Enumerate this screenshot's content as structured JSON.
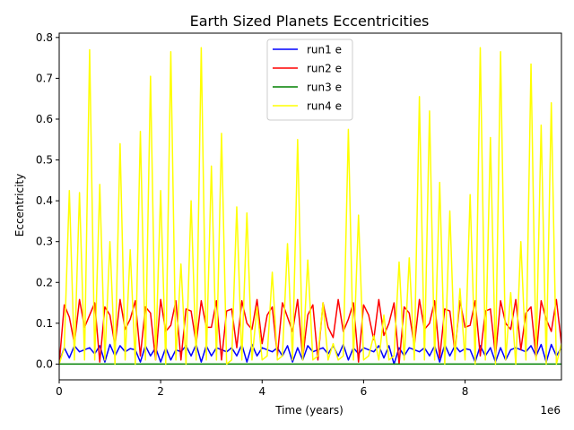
{
  "chart_data": {
    "type": "line",
    "title": "Earth Sized Planets Eccentricities",
    "xlabel": "Time (years)",
    "ylabel": "Eccentricity",
    "x_scale_label": "1e6",
    "xlim": [
      0,
      9900000
    ],
    "ylim": [
      -0.0386,
      0.8106
    ],
    "x_ticks": [
      0,
      2000000,
      4000000,
      6000000,
      8000000
    ],
    "x_tick_labels": [
      "0",
      "2",
      "4",
      "6",
      "8"
    ],
    "y_ticks": [
      0.0,
      0.1,
      0.2,
      0.3,
      0.4,
      0.5,
      0.6,
      0.7,
      0.8
    ],
    "y_tick_labels": [
      "0.0",
      "0.1",
      "0.2",
      "0.3",
      "0.4",
      "0.5",
      "0.6",
      "0.7",
      "0.8"
    ],
    "grid": false,
    "legend": "top-center",
    "x": [
      0,
      100000,
      200000,
      300000,
      400000,
      500000,
      600000,
      700000,
      800000,
      900000,
      1000000,
      1100000,
      1200000,
      1300000,
      1400000,
      1500000,
      1600000,
      1700000,
      1800000,
      1900000,
      2000000,
      2100000,
      2200000,
      2300000,
      2400000,
      2500000,
      2600000,
      2700000,
      2800000,
      2900000,
      3000000,
      3100000,
      3200000,
      3300000,
      3400000,
      3500000,
      3600000,
      3700000,
      3800000,
      3900000,
      4000000,
      4100000,
      4200000,
      4300000,
      4400000,
      4500000,
      4600000,
      4700000,
      4800000,
      4900000,
      5000000,
      5100000,
      5200000,
      5300000,
      5400000,
      5500000,
      5600000,
      5700000,
      5800000,
      5900000,
      6000000,
      6100000,
      6200000,
      6300000,
      6400000,
      6500000,
      6600000,
      6700000,
      6800000,
      6900000,
      7000000,
      7100000,
      7200000,
      7300000,
      7400000,
      7500000,
      7600000,
      7700000,
      7800000,
      7900000,
      8000000,
      8100000,
      8200000,
      8300000,
      8400000,
      8500000,
      8600000,
      8700000,
      8800000,
      8900000,
      9000000,
      9100000,
      9200000,
      9300000,
      9400000,
      9500000,
      9600000,
      9700000,
      9800000,
      9900000
    ],
    "series": [
      {
        "name": "run1 e",
        "color": "#0000ff",
        "values": [
          0.005,
          0.04,
          0.015,
          0.045,
          0.03,
          0.035,
          0.04,
          0.025,
          0.045,
          0.005,
          0.048,
          0.02,
          0.045,
          0.03,
          0.038,
          0.035,
          0.005,
          0.045,
          0.02,
          0.04,
          0.005,
          0.04,
          0.01,
          0.035,
          0.03,
          0.045,
          0.02,
          0.048,
          0.005,
          0.045,
          0.02,
          0.04,
          0.035,
          0.03,
          0.04,
          0.02,
          0.048,
          0.005,
          0.048,
          0.02,
          0.04,
          0.035,
          0.03,
          0.04,
          0.02,
          0.045,
          0.005,
          0.04,
          0.01,
          0.045,
          0.03,
          0.035,
          0.04,
          0.025,
          0.045,
          0.02,
          0.048,
          0.01,
          0.04,
          0.025,
          0.04,
          0.035,
          0.03,
          0.045,
          0.015,
          0.045,
          0.0,
          0.04,
          0.02,
          0.04,
          0.035,
          0.03,
          0.04,
          0.02,
          0.045,
          0.005,
          0.048,
          0.02,
          0.045,
          0.03,
          0.038,
          0.035,
          0.005,
          0.045,
          0.02,
          0.04,
          0.005,
          0.04,
          0.01,
          0.035,
          0.04,
          0.035,
          0.03,
          0.045,
          0.02,
          0.048,
          0.005,
          0.048,
          0.02,
          0.04
        ]
      },
      {
        "name": "run2 e",
        "color": "#ff0000",
        "values": [
          0.0,
          0.145,
          0.115,
          0.05,
          0.158,
          0.09,
          0.12,
          0.15,
          0.005,
          0.14,
          0.12,
          0.045,
          0.158,
          0.085,
          0.11,
          0.155,
          0.02,
          0.14,
          0.125,
          0.01,
          0.158,
          0.08,
          0.095,
          0.155,
          0.01,
          0.135,
          0.13,
          0.05,
          0.155,
          0.09,
          0.09,
          0.155,
          0.01,
          0.13,
          0.135,
          0.04,
          0.155,
          0.1,
          0.085,
          0.158,
          0.05,
          0.12,
          0.14,
          0.02,
          0.15,
          0.115,
          0.08,
          0.158,
          0.015,
          0.12,
          0.145,
          0.01,
          0.15,
          0.09,
          0.065,
          0.158,
          0.08,
          0.11,
          0.15,
          0.005,
          0.145,
          0.12,
          0.06,
          0.158,
          0.07,
          0.1,
          0.15,
          0.0,
          0.14,
          0.125,
          0.045,
          0.158,
          0.085,
          0.1,
          0.155,
          0.015,
          0.135,
          0.13,
          0.03,
          0.155,
          0.09,
          0.095,
          0.155,
          0.02,
          0.13,
          0.135,
          0.02,
          0.155,
          0.1,
          0.085,
          0.158,
          0.035,
          0.125,
          0.14,
          0.015,
          0.155,
          0.11,
          0.08,
          0.158,
          0.05
        ]
      },
      {
        "name": "run3 e",
        "color": "#008000",
        "values": [
          0.0,
          0.0,
          0.0,
          0.0,
          0.0,
          0.0,
          0.0,
          0.0,
          0.0,
          0.0,
          0.0,
          0.0,
          0.0,
          0.0,
          0.0,
          0.0,
          0.0,
          0.0,
          0.0,
          0.0,
          0.0,
          0.0,
          0.0,
          0.0,
          0.0,
          0.0,
          0.0,
          0.0,
          0.0,
          0.0,
          0.0,
          0.0,
          0.0,
          0.0,
          0.0,
          0.0,
          0.0,
          0.0,
          0.0,
          0.0,
          0.0,
          0.0,
          0.0,
          0.0,
          0.0,
          0.0,
          0.0,
          0.0,
          0.0,
          0.0,
          0.0,
          0.0,
          0.0,
          0.0,
          0.0,
          0.0,
          0.0,
          0.0,
          0.0,
          0.0,
          0.0,
          0.0,
          0.0,
          0.0,
          0.0,
          0.0,
          0.0,
          0.0,
          0.0,
          0.0,
          0.0,
          0.0,
          0.0,
          0.0,
          0.0,
          0.0,
          0.0,
          0.0,
          0.0,
          0.0,
          0.0,
          0.0,
          0.0,
          0.0,
          0.0,
          0.0,
          0.0,
          0.0,
          0.0,
          0.0,
          0.0,
          0.0,
          0.0,
          0.0,
          0.0,
          0.0,
          0.0,
          0.0,
          0.0,
          0.0
        ]
      },
      {
        "name": "run4 e",
        "color": "#ffff00",
        "values": [
          0.0,
          0.04,
          0.425,
          0.01,
          0.42,
          0.01,
          0.77,
          0.01,
          0.44,
          0.01,
          0.3,
          0.0,
          0.54,
          0.01,
          0.28,
          0.0,
          0.57,
          0.01,
          0.705,
          0.01,
          0.425,
          0.0,
          0.765,
          0.01,
          0.245,
          0.0,
          0.4,
          0.01,
          0.775,
          0.01,
          0.485,
          0.01,
          0.565,
          0.0,
          0.01,
          0.385,
          0.01,
          0.37,
          0.01,
          0.14,
          0.01,
          0.02,
          0.225,
          0.01,
          0.02,
          0.295,
          0.01,
          0.55,
          0.01,
          0.255,
          0.01,
          0.02,
          0.15,
          0.01,
          0.05,
          0.01,
          0.02,
          0.575,
          0.01,
          0.365,
          0.01,
          0.02,
          0.07,
          0.01,
          0.12,
          0.01,
          0.02,
          0.25,
          0.01,
          0.26,
          0.01,
          0.655,
          0.01,
          0.62,
          0.01,
          0.445,
          0.0,
          0.375,
          0.01,
          0.185,
          0.01,
          0.415,
          0.0,
          0.775,
          0.01,
          0.555,
          0.0,
          0.765,
          0.01,
          0.175,
          0.0,
          0.3,
          0.01,
          0.735,
          0.01,
          0.585,
          0.0,
          0.64,
          0.0,
          0.05
        ]
      }
    ]
  }
}
